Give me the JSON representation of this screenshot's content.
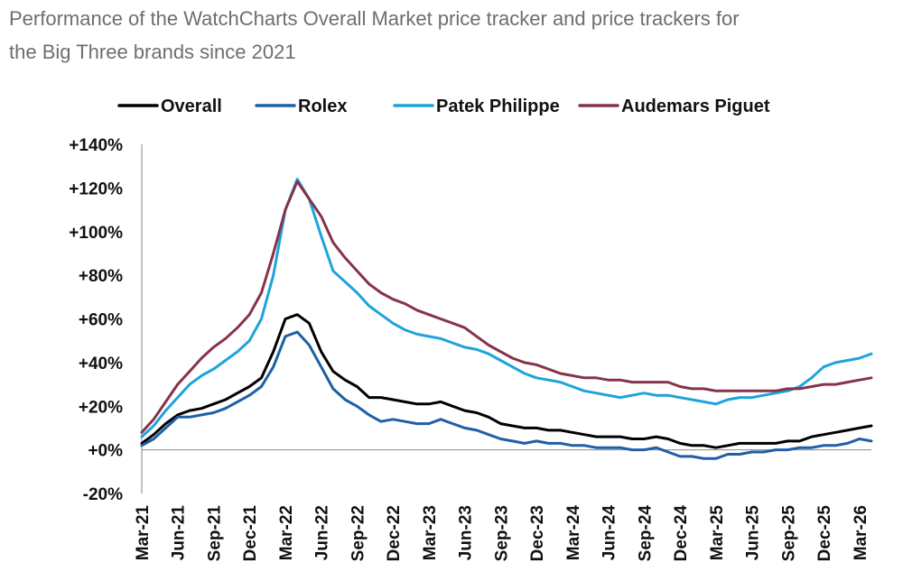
{
  "title": "Performance of the WatchCharts Overall Market price tracker and price trackers for the Big Three brands since 2021",
  "chart_data": {
    "type": "line",
    "title": "Performance of the WatchCharts Overall Market price tracker and price trackers for the Big Three brands since 2021",
    "xlabel": "",
    "ylabel": "",
    "x_ticks": [
      "Mar-21",
      "Jun-21",
      "Sep-21",
      "Dec-21",
      "Mar-22",
      "Jun-22",
      "Sep-22",
      "Dec-22",
      "Mar-23",
      "Jun-23",
      "Sep-23",
      "Dec-23",
      "Mar-24",
      "Jun-24",
      "Sep-24",
      "Dec-24",
      "Mar-25",
      "Jun-25",
      "Sep-25",
      "Dec-25",
      "Mar-26"
    ],
    "y_ticks": [
      "-20%",
      "+0%",
      "+20%",
      "+40%",
      "+60%",
      "+80%",
      "+100%",
      "+120%",
      "+140%"
    ],
    "ylim": [
      -20,
      140
    ],
    "grid": false,
    "legend_position": "top",
    "x": [
      "2021-03",
      "2021-04",
      "2021-05",
      "2021-06",
      "2021-07",
      "2021-08",
      "2021-09",
      "2021-10",
      "2021-11",
      "2021-12",
      "2022-01",
      "2022-02",
      "2022-03",
      "2022-04",
      "2022-05",
      "2022-06",
      "2022-07",
      "2022-08",
      "2022-09",
      "2022-10",
      "2022-11",
      "2022-12",
      "2023-01",
      "2023-02",
      "2023-03",
      "2023-04",
      "2023-05",
      "2023-06",
      "2023-07",
      "2023-08",
      "2023-09",
      "2023-10",
      "2023-11",
      "2023-12",
      "2024-01",
      "2024-02",
      "2024-03",
      "2024-04",
      "2024-05",
      "2024-06",
      "2024-07",
      "2024-08",
      "2024-09",
      "2024-10",
      "2024-11",
      "2024-12",
      "2025-01",
      "2025-02",
      "2025-03",
      "2025-04",
      "2025-05",
      "2025-06",
      "2025-07",
      "2025-08",
      "2025-09",
      "2025-10",
      "2025-11",
      "2025-12",
      "2026-01",
      "2026-02",
      "2026-03",
      "2026-04"
    ],
    "series": [
      {
        "name": "Overall",
        "color": "#000000",
        "values": [
          3,
          7,
          12,
          16,
          18,
          19,
          21,
          23,
          26,
          29,
          33,
          45,
          60,
          62,
          58,
          45,
          36,
          32,
          29,
          24,
          24,
          23,
          22,
          21,
          21,
          22,
          20,
          18,
          17,
          15,
          12,
          11,
          10,
          10,
          9,
          9,
          8,
          7,
          6,
          6,
          6,
          5,
          5,
          6,
          5,
          3,
          2,
          2,
          1,
          2,
          3,
          3,
          3,
          3,
          4,
          4,
          6,
          7,
          8,
          9,
          10,
          11
        ]
      },
      {
        "name": "Rolex",
        "color": "#1f5fa6",
        "values": [
          2,
          5,
          10,
          15,
          15,
          16,
          17,
          19,
          22,
          25,
          29,
          38,
          52,
          54,
          48,
          38,
          28,
          23,
          20,
          16,
          13,
          14,
          13,
          12,
          12,
          14,
          12,
          10,
          9,
          7,
          5,
          4,
          3,
          4,
          3,
          3,
          2,
          2,
          1,
          1,
          1,
          0,
          0,
          1,
          -1,
          -3,
          -3,
          -4,
          -4,
          -2,
          -2,
          -1,
          -1,
          0,
          0,
          1,
          1,
          2,
          2,
          3,
          5,
          4
        ]
      },
      {
        "name": "Patek Philippe",
        "color": "#1ea3dc",
        "values": [
          6,
          11,
          18,
          24,
          30,
          34,
          37,
          41,
          45,
          50,
          60,
          80,
          110,
          124,
          115,
          98,
          82,
          77,
          72,
          66,
          62,
          58,
          55,
          53,
          52,
          51,
          49,
          47,
          46,
          44,
          41,
          38,
          35,
          33,
          32,
          31,
          29,
          27,
          26,
          25,
          24,
          25,
          26,
          25,
          25,
          24,
          23,
          22,
          21,
          23,
          24,
          24,
          25,
          26,
          27,
          29,
          33,
          38,
          40,
          41,
          42,
          44
        ]
      },
      {
        "name": "Audemars Piguet",
        "color": "#86334a",
        "values": [
          8,
          14,
          22,
          30,
          36,
          42,
          47,
          51,
          56,
          62,
          72,
          90,
          110,
          123,
          115,
          107,
          95,
          88,
          82,
          76,
          72,
          69,
          67,
          64,
          62,
          60,
          58,
          56,
          52,
          48,
          45,
          42,
          40,
          39,
          37,
          35,
          34,
          33,
          33,
          32,
          32,
          31,
          31,
          31,
          31,
          29,
          28,
          28,
          27,
          27,
          27,
          27,
          27,
          27,
          28,
          28,
          29,
          30,
          30,
          31,
          32,
          33
        ]
      }
    ]
  }
}
